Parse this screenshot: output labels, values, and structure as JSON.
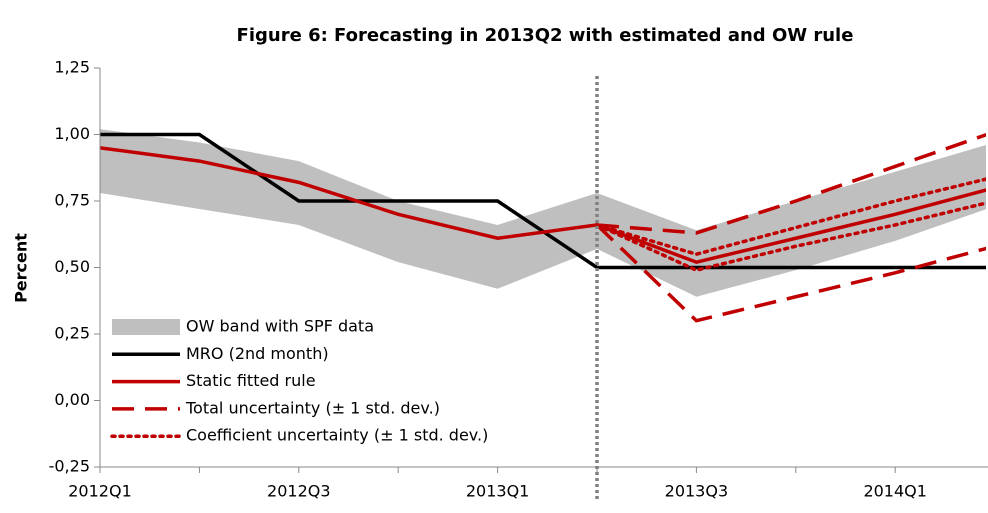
{
  "chart_data": {
    "type": "line",
    "title": "Figure 6: Forecasting in 2013Q2 with estimated and OW rule",
    "y_label": "Percent",
    "categories": [
      "2012Q1",
      null,
      "2012Q3",
      null,
      "2013Q1",
      null,
      "2013Q3",
      null,
      "2014Q1",
      null
    ],
    "ylim": [
      -0.25,
      1.25
    ],
    "yticks": [
      {
        "value": -0.25,
        "label": "-0,25"
      },
      {
        "value": 0,
        "label": "0,00"
      },
      {
        "value": 0.25,
        "label": "0,25"
      },
      {
        "value": 0.5,
        "label": "0,50"
      },
      {
        "value": 0.75,
        "label": "0,75"
      },
      {
        "value": 1,
        "label": "1,00"
      },
      {
        "value": 1.25,
        "label": "1,25"
      }
    ],
    "forecast_start": 5,
    "series": [
      {
        "name": "OW band with SPF data",
        "color": "#bfbfbf",
        "style": "band",
        "values": [
          1.02,
          0.97,
          0.9,
          0.75,
          0.66,
          0.78,
          0.64,
          0.75,
          0.86,
          0.97
        ],
        "lower": [
          0.78,
          0.72,
          0.66,
          0.52,
          0.42,
          0.57,
          0.39,
          0.49,
          0.6,
          0.73
        ]
      },
      {
        "name": "MRO (2nd month)",
        "color": "#000000",
        "style": "solid",
        "values": [
          1.0,
          1.0,
          0.75,
          0.75,
          0.75,
          0.5,
          0.5,
          0.5,
          0.5,
          0.5
        ]
      },
      {
        "name": "Static fitted rule",
        "color": "#c00000",
        "style": "solid",
        "values": [
          0.95,
          0.9,
          0.82,
          0.7,
          0.61,
          0.66,
          0.52,
          0.61,
          0.7,
          0.8
        ]
      },
      {
        "name": "Total uncertainty (± 1 std. dev.)",
        "color": "#c00000",
        "style": "dashed",
        "values": [
          null,
          null,
          null,
          null,
          null,
          0.66,
          0.63,
          0.75,
          0.88,
          1.01
        ],
        "lower": [
          null,
          null,
          null,
          null,
          null,
          0.66,
          0.3,
          0.39,
          0.48,
          0.58
        ]
      },
      {
        "name": "Coefficient uncertainty (± 1 std. dev.)",
        "color": "#c00000",
        "style": "dotted",
        "values": [
          null,
          null,
          null,
          null,
          null,
          0.66,
          0.55,
          0.65,
          0.75,
          0.84
        ],
        "lower": [
          null,
          null,
          null,
          null,
          null,
          0.66,
          0.49,
          0.58,
          0.66,
          0.75
        ]
      }
    ]
  }
}
